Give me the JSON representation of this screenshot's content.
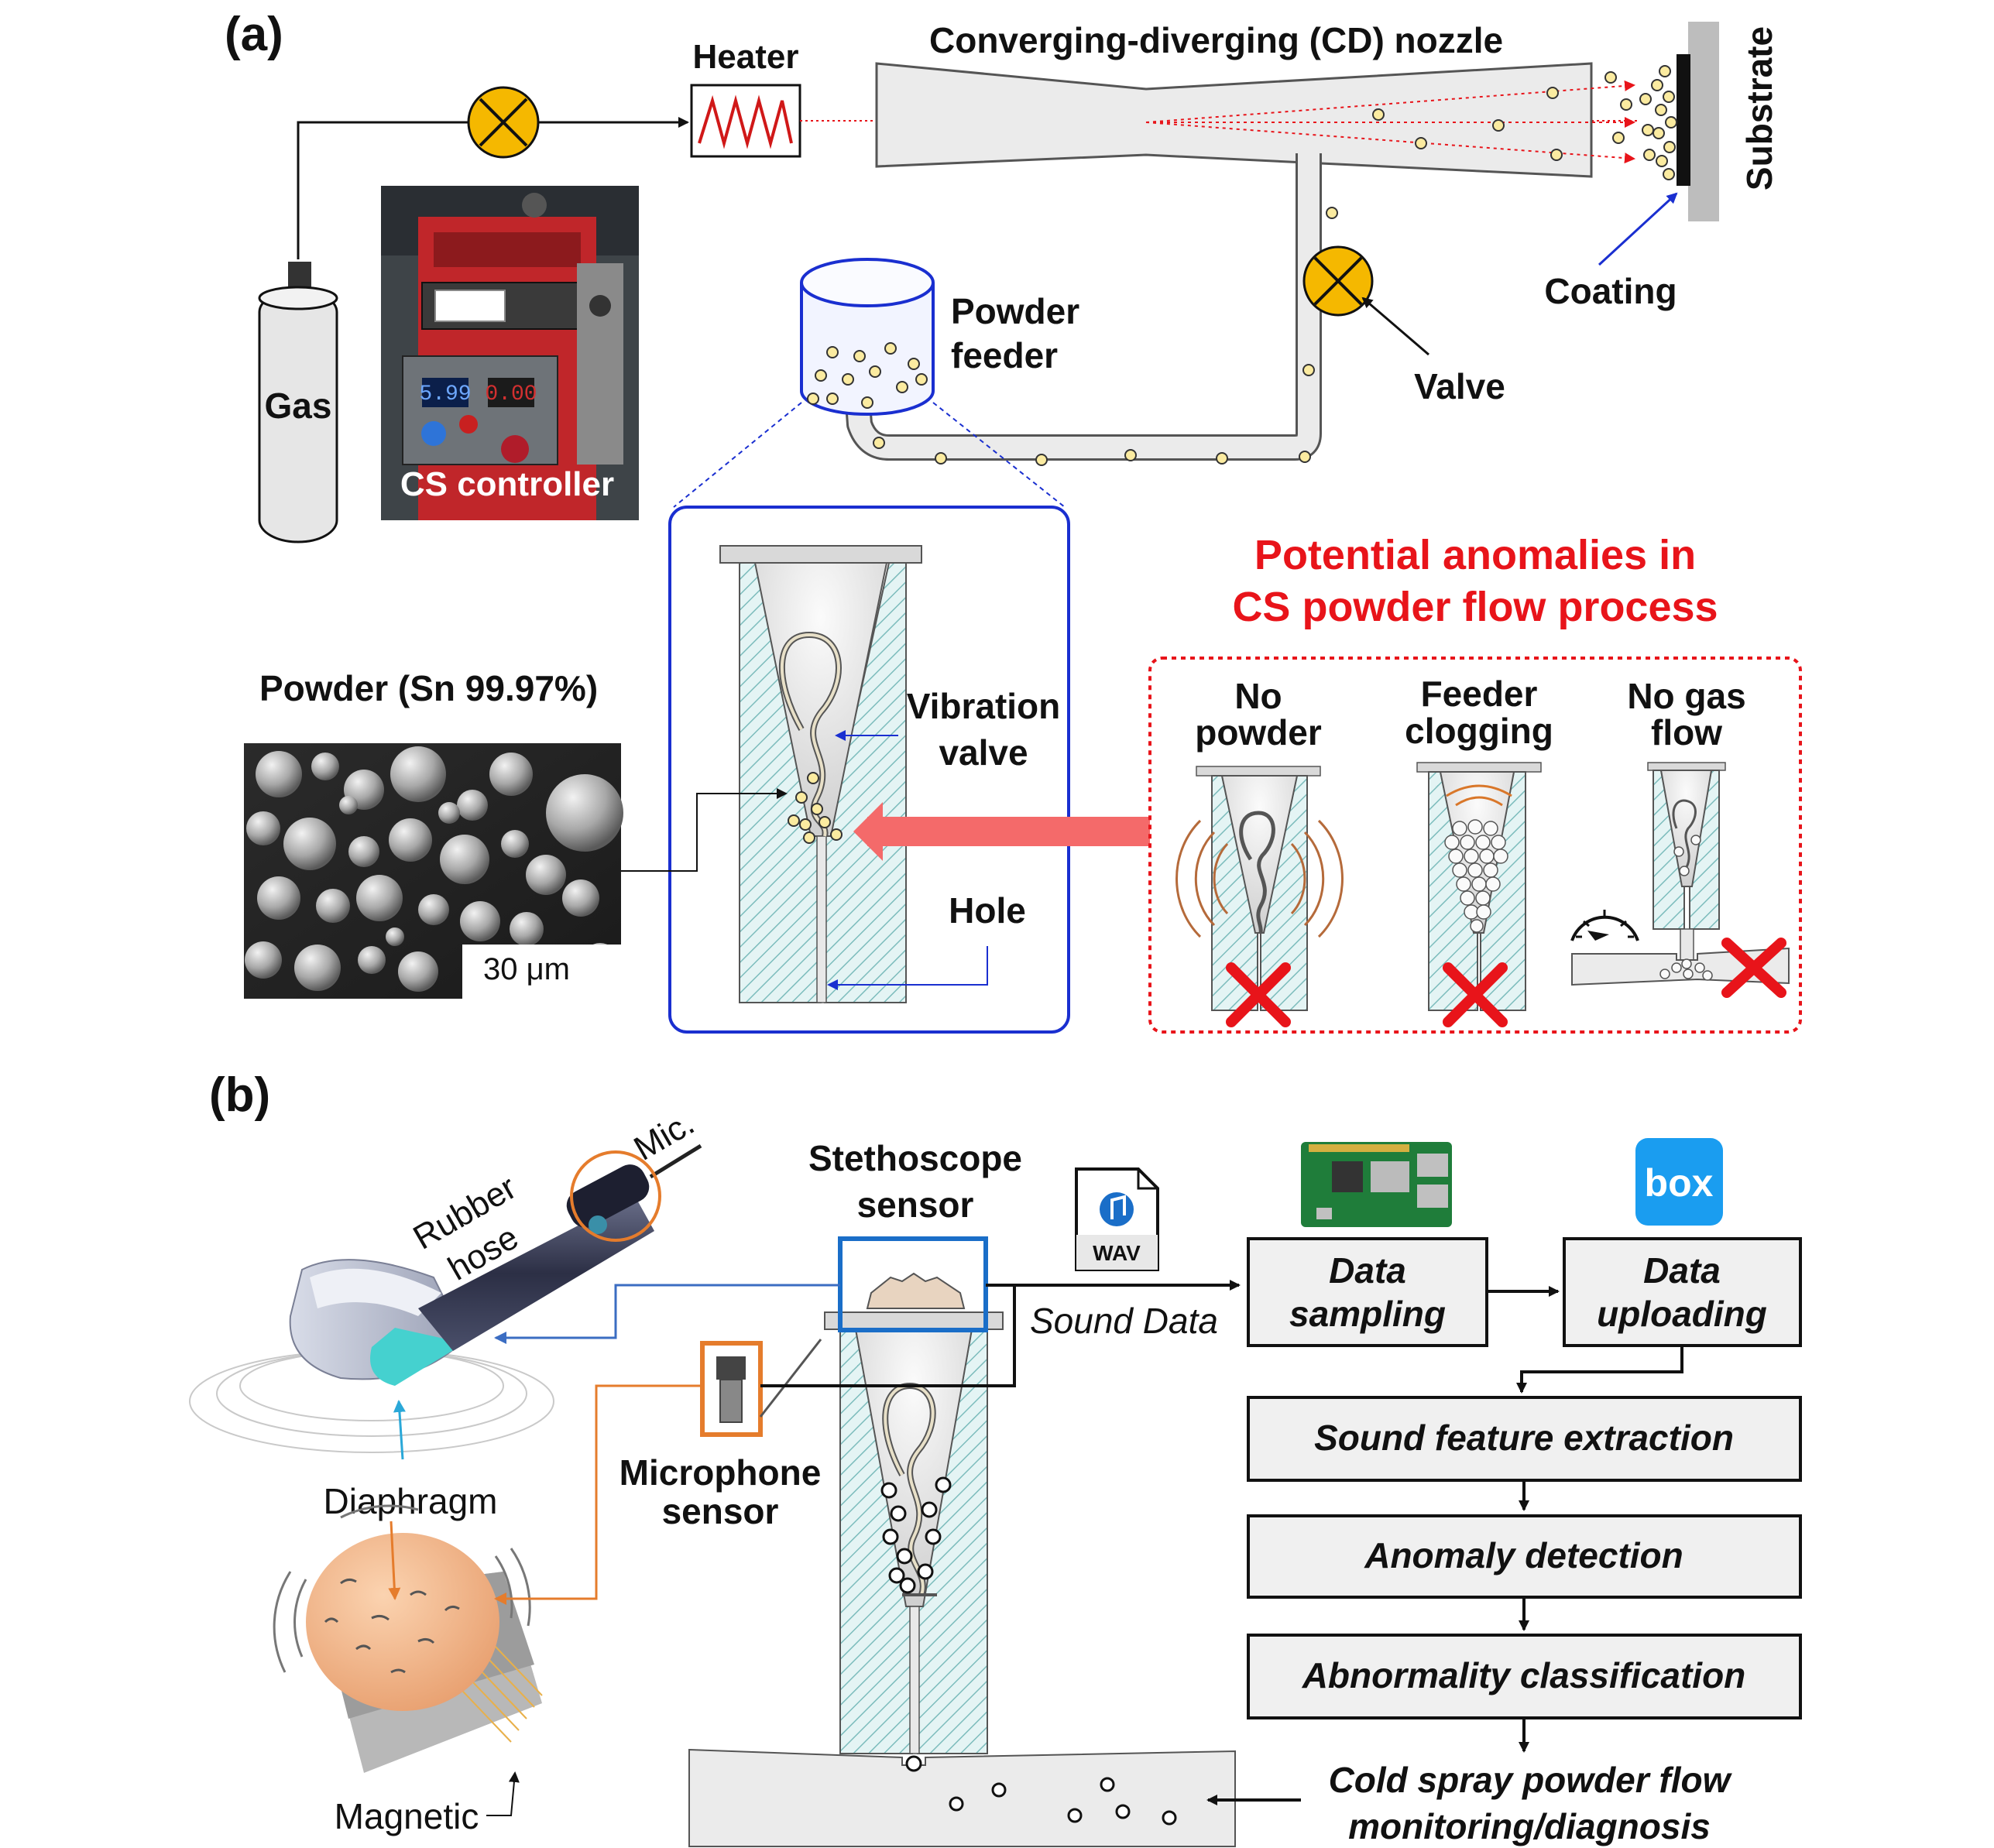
{
  "panel_a": {
    "panel_label": "(a)",
    "heater_label": "Heater",
    "nozzle_label": "Converging-diverging (CD) nozzle",
    "substrate_label": "Substrate",
    "coating_label": "Coating",
    "gas_label": "Gas",
    "controller_label": "CS controller",
    "controller_display_left": "5.99",
    "controller_display_right": "0.00",
    "powder_feeder_line1": "Powder",
    "powder_feeder_line2": "feeder",
    "valve_label": "Valve",
    "powder_title": "Powder (Sn 99.97%)",
    "scale_bar": "30 μm",
    "vibration_valve_line1": "Vibration",
    "vibration_valve_line2": "valve",
    "hole_label": "Hole",
    "anomalies_title_line1": "Potential anomalies in",
    "anomalies_title_line2": "CS powder flow process",
    "anomalies": [
      {
        "line1": "No",
        "line2": "powder"
      },
      {
        "line1": "Feeder",
        "line2": "clogging"
      },
      {
        "line1": "No gas",
        "line2": "flow"
      }
    ]
  },
  "panel_b": {
    "panel_label": "(b)",
    "mic_label": "Mic.",
    "rubber_hose_line1": "Rubber",
    "rubber_hose_line2": "hose",
    "diaphragm_label": "Diaphragm",
    "magnetic_label": "Magnetic",
    "stethoscope_line1": "Stethoscope",
    "stethoscope_line2": "sensor",
    "microphone_line1": "Microphone",
    "microphone_line2": "sensor",
    "wav_label": "WAV",
    "sound_data_label": "Sound Data",
    "box_logo": "box",
    "data_sampling_line1": "Data",
    "data_sampling_line2": "sampling",
    "data_uploading_line1": "Data",
    "data_uploading_line2": "uploading",
    "pipeline": [
      "Sound feature extraction",
      "Anomaly detection",
      "Abnormality classification"
    ],
    "monitoring_line1": "Cold spray powder flow",
    "monitoring_line2": "monitoring/diagnosis"
  },
  "colors": {
    "valve_fill": "#f5b800",
    "red_text": "#e8141a",
    "blue_frame": "#1a2fd0",
    "orange_frame": "#e57c2c",
    "hatch": "#8fc9c9",
    "box_blue": "#1a9df0"
  }
}
